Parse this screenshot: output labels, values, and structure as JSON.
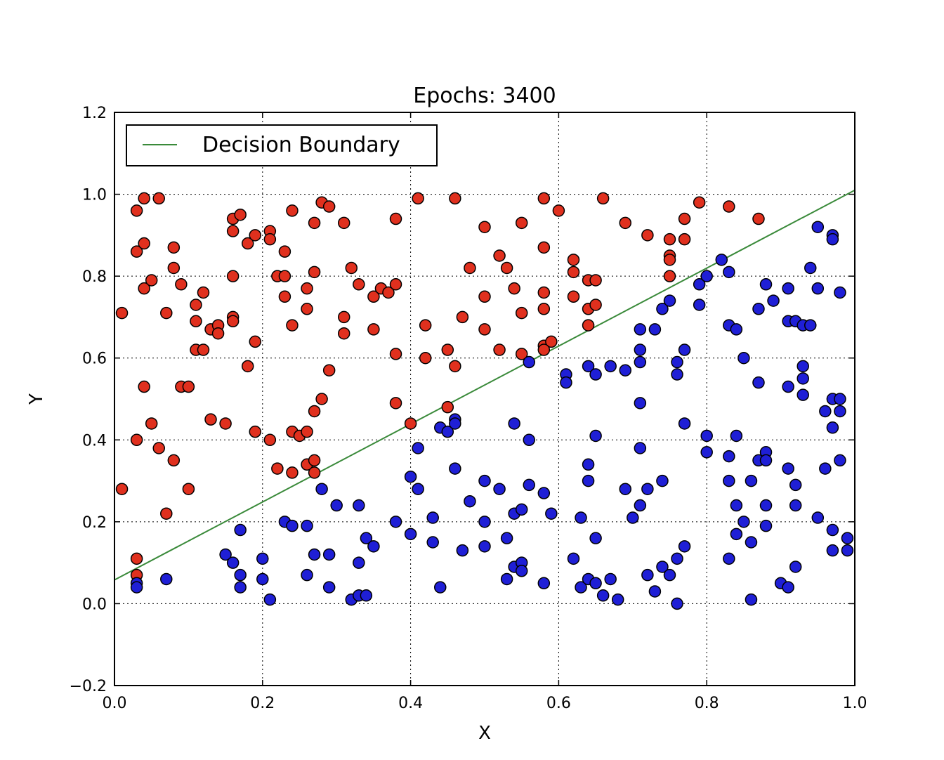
{
  "chart_data": {
    "type": "scatter",
    "title": "Epochs: 3400",
    "xlabel": "X",
    "ylabel": "Y",
    "xlim": [
      0.0,
      1.0
    ],
    "ylim": [
      -0.2,
      1.2
    ],
    "xticks": [
      "0.0",
      "0.2",
      "0.4",
      "0.6",
      "0.8",
      "1.0"
    ],
    "yticks": [
      "−0.2",
      "0.0",
      "0.2",
      "0.4",
      "0.6",
      "0.8",
      "1.0",
      "1.2"
    ],
    "grid": true,
    "legend": {
      "position": "top-left",
      "entries": [
        "Decision Boundary"
      ]
    },
    "colors": {
      "red": "#e0301e",
      "blue": "#1f1fd6",
      "boundary": "#3a8a3a"
    },
    "boundary": {
      "x": [
        0.0,
        1.0
      ],
      "y": [
        0.058,
        1.01
      ]
    },
    "series": [
      {
        "color_key": "red",
        "points": [
          [
            0.01,
            0.71
          ],
          [
            0.03,
            0.96
          ],
          [
            0.04,
            0.99
          ],
          [
            0.06,
            0.99
          ],
          [
            0.03,
            0.86
          ],
          [
            0.04,
            0.88
          ],
          [
            0.08,
            0.87
          ],
          [
            0.04,
            0.77
          ],
          [
            0.05,
            0.79
          ],
          [
            0.08,
            0.82
          ],
          [
            0.09,
            0.78
          ],
          [
            0.07,
            0.71
          ],
          [
            0.11,
            0.73
          ],
          [
            0.12,
            0.76
          ],
          [
            0.11,
            0.69
          ],
          [
            0.11,
            0.62
          ],
          [
            0.12,
            0.62
          ],
          [
            0.13,
            0.67
          ],
          [
            0.14,
            0.68
          ],
          [
            0.14,
            0.66
          ],
          [
            0.04,
            0.53
          ],
          [
            0.09,
            0.53
          ],
          [
            0.1,
            0.53
          ],
          [
            0.05,
            0.44
          ],
          [
            0.06,
            0.38
          ],
          [
            0.03,
            0.4
          ],
          [
            0.08,
            0.35
          ],
          [
            0.07,
            0.22
          ],
          [
            0.01,
            0.28
          ],
          [
            0.1,
            0.28
          ],
          [
            0.03,
            0.11
          ],
          [
            0.03,
            0.07
          ],
          [
            0.13,
            0.45
          ],
          [
            0.15,
            0.44
          ],
          [
            0.16,
            0.94
          ],
          [
            0.17,
            0.95
          ],
          [
            0.16,
            0.91
          ],
          [
            0.18,
            0.88
          ],
          [
            0.19,
            0.9
          ],
          [
            0.21,
            0.91
          ],
          [
            0.21,
            0.89
          ],
          [
            0.24,
            0.96
          ],
          [
            0.23,
            0.86
          ],
          [
            0.16,
            0.8
          ],
          [
            0.22,
            0.8
          ],
          [
            0.23,
            0.8
          ],
          [
            0.23,
            0.75
          ],
          [
            0.16,
            0.7
          ],
          [
            0.16,
            0.69
          ],
          [
            0.24,
            0.68
          ],
          [
            0.19,
            0.64
          ],
          [
            0.18,
            0.58
          ],
          [
            0.19,
            0.42
          ],
          [
            0.21,
            0.4
          ],
          [
            0.24,
            0.42
          ],
          [
            0.25,
            0.41
          ],
          [
            0.26,
            0.42
          ],
          [
            0.22,
            0.33
          ],
          [
            0.24,
            0.32
          ],
          [
            0.26,
            0.34
          ],
          [
            0.27,
            0.32
          ],
          [
            0.27,
            0.35
          ],
          [
            0.27,
            0.47
          ],
          [
            0.28,
            0.5
          ],
          [
            0.29,
            0.57
          ],
          [
            0.28,
            0.98
          ],
          [
            0.29,
            0.97
          ],
          [
            0.27,
            0.93
          ],
          [
            0.31,
            0.93
          ],
          [
            0.27,
            0.81
          ],
          [
            0.26,
            0.77
          ],
          [
            0.26,
            0.72
          ],
          [
            0.31,
            0.7
          ],
          [
            0.31,
            0.66
          ],
          [
            0.32,
            0.82
          ],
          [
            0.33,
            0.78
          ],
          [
            0.35,
            0.75
          ],
          [
            0.36,
            0.77
          ],
          [
            0.37,
            0.76
          ],
          [
            0.38,
            0.78
          ],
          [
            0.38,
            0.94
          ],
          [
            0.35,
            0.67
          ],
          [
            0.38,
            0.61
          ],
          [
            0.38,
            0.49
          ],
          [
            0.4,
            0.44
          ],
          [
            0.41,
            0.99
          ],
          [
            0.46,
            0.99
          ],
          [
            0.42,
            0.68
          ],
          [
            0.42,
            0.6
          ],
          [
            0.45,
            0.62
          ],
          [
            0.46,
            0.58
          ],
          [
            0.47,
            0.7
          ],
          [
            0.48,
            0.82
          ],
          [
            0.5,
            0.92
          ],
          [
            0.5,
            0.75
          ],
          [
            0.5,
            0.67
          ],
          [
            0.45,
            0.48
          ],
          [
            0.52,
            0.85
          ],
          [
            0.53,
            0.82
          ],
          [
            0.55,
            0.93
          ],
          [
            0.54,
            0.77
          ],
          [
            0.55,
            0.71
          ],
          [
            0.52,
            0.62
          ],
          [
            0.55,
            0.61
          ],
          [
            0.58,
            0.99
          ],
          [
            0.6,
            0.96
          ],
          [
            0.58,
            0.87
          ],
          [
            0.58,
            0.76
          ],
          [
            0.58,
            0.72
          ],
          [
            0.58,
            0.63
          ],
          [
            0.59,
            0.64
          ],
          [
            0.58,
            0.62
          ],
          [
            0.62,
            0.84
          ],
          [
            0.62,
            0.81
          ],
          [
            0.64,
            0.79
          ],
          [
            0.65,
            0.79
          ],
          [
            0.62,
            0.75
          ],
          [
            0.64,
            0.72
          ],
          [
            0.65,
            0.73
          ],
          [
            0.64,
            0.68
          ],
          [
            0.66,
            0.99
          ],
          [
            0.69,
            0.93
          ],
          [
            0.72,
            0.9
          ],
          [
            0.75,
            0.89
          ],
          [
            0.77,
            0.89
          ],
          [
            0.75,
            0.85
          ],
          [
            0.75,
            0.84
          ],
          [
            0.75,
            0.8
          ],
          [
            0.77,
            0.94
          ],
          [
            0.79,
            0.98
          ],
          [
            0.83,
            0.97
          ],
          [
            0.87,
            0.94
          ]
        ]
      },
      {
        "color_key": "blue",
        "points": [
          [
            0.03,
            0.05
          ],
          [
            0.03,
            0.04
          ],
          [
            0.07,
            0.06
          ],
          [
            0.15,
            0.12
          ],
          [
            0.16,
            0.1
          ],
          [
            0.17,
            0.07
          ],
          [
            0.17,
            0.04
          ],
          [
            0.17,
            0.18
          ],
          [
            0.2,
            0.11
          ],
          [
            0.2,
            0.06
          ],
          [
            0.21,
            0.01
          ],
          [
            0.23,
            0.2
          ],
          [
            0.24,
            0.19
          ],
          [
            0.26,
            0.19
          ],
          [
            0.26,
            0.07
          ],
          [
            0.27,
            0.12
          ],
          [
            0.29,
            0.12
          ],
          [
            0.29,
            0.04
          ],
          [
            0.28,
            0.28
          ],
          [
            0.3,
            0.24
          ],
          [
            0.32,
            0.01
          ],
          [
            0.33,
            0.02
          ],
          [
            0.33,
            0.1
          ],
          [
            0.33,
            0.24
          ],
          [
            0.34,
            0.16
          ],
          [
            0.35,
            0.14
          ],
          [
            0.34,
            0.02
          ],
          [
            0.38,
            0.2
          ],
          [
            0.4,
            0.17
          ],
          [
            0.4,
            0.31
          ],
          [
            0.41,
            0.28
          ],
          [
            0.41,
            0.38
          ],
          [
            0.43,
            0.21
          ],
          [
            0.43,
            0.15
          ],
          [
            0.44,
            0.04
          ],
          [
            0.44,
            0.43
          ],
          [
            0.45,
            0.42
          ],
          [
            0.46,
            0.45
          ],
          [
            0.46,
            0.44
          ],
          [
            0.46,
            0.33
          ],
          [
            0.47,
            0.13
          ],
          [
            0.48,
            0.25
          ],
          [
            0.5,
            0.3
          ],
          [
            0.5,
            0.2
          ],
          [
            0.5,
            0.14
          ],
          [
            0.52,
            0.28
          ],
          [
            0.53,
            0.16
          ],
          [
            0.53,
            0.06
          ],
          [
            0.54,
            0.09
          ],
          [
            0.55,
            0.1
          ],
          [
            0.55,
            0.08
          ],
          [
            0.54,
            0.22
          ],
          [
            0.55,
            0.23
          ],
          [
            0.54,
            0.44
          ],
          [
            0.56,
            0.4
          ],
          [
            0.56,
            0.29
          ],
          [
            0.56,
            0.59
          ],
          [
            0.58,
            0.27
          ],
          [
            0.58,
            0.05
          ],
          [
            0.59,
            0.22
          ],
          [
            0.61,
            0.56
          ],
          [
            0.61,
            0.54
          ],
          [
            0.62,
            0.11
          ],
          [
            0.63,
            0.04
          ],
          [
            0.64,
            0.06
          ],
          [
            0.65,
            0.05
          ],
          [
            0.63,
            0.21
          ],
          [
            0.64,
            0.3
          ],
          [
            0.64,
            0.34
          ],
          [
            0.65,
            0.41
          ],
          [
            0.65,
            0.16
          ],
          [
            0.66,
            0.02
          ],
          [
            0.67,
            0.06
          ],
          [
            0.64,
            0.58
          ],
          [
            0.65,
            0.56
          ],
          [
            0.67,
            0.58
          ],
          [
            0.69,
            0.57
          ],
          [
            0.69,
            0.28
          ],
          [
            0.68,
            0.01
          ],
          [
            0.7,
            0.21
          ],
          [
            0.71,
            0.24
          ],
          [
            0.71,
            0.38
          ],
          [
            0.71,
            0.59
          ],
          [
            0.71,
            0.62
          ],
          [
            0.71,
            0.67
          ],
          [
            0.71,
            0.49
          ],
          [
            0.72,
            0.28
          ],
          [
            0.72,
            0.07
          ],
          [
            0.73,
            0.03
          ],
          [
            0.73,
            0.67
          ],
          [
            0.74,
            0.72
          ],
          [
            0.75,
            0.74
          ],
          [
            0.74,
            0.3
          ],
          [
            0.74,
            0.09
          ],
          [
            0.75,
            0.07
          ],
          [
            0.76,
            0.11
          ],
          [
            0.76,
            0.0
          ],
          [
            0.77,
            0.14
          ],
          [
            0.76,
            0.56
          ],
          [
            0.76,
            0.59
          ],
          [
            0.77,
            0.62
          ],
          [
            0.77,
            0.44
          ],
          [
            0.79,
            0.78
          ],
          [
            0.79,
            0.73
          ],
          [
            0.8,
            0.8
          ],
          [
            0.8,
            0.37
          ],
          [
            0.8,
            0.41
          ],
          [
            0.82,
            0.84
          ],
          [
            0.83,
            0.81
          ],
          [
            0.83,
            0.68
          ],
          [
            0.84,
            0.67
          ],
          [
            0.83,
            0.36
          ],
          [
            0.84,
            0.41
          ],
          [
            0.83,
            0.3
          ],
          [
            0.83,
            0.11
          ],
          [
            0.84,
            0.17
          ],
          [
            0.84,
            0.24
          ],
          [
            0.85,
            0.2
          ],
          [
            0.85,
            0.6
          ],
          [
            0.86,
            0.3
          ],
          [
            0.86,
            0.15
          ],
          [
            0.86,
            0.01
          ],
          [
            0.87,
            0.35
          ],
          [
            0.87,
            0.72
          ],
          [
            0.87,
            0.54
          ],
          [
            0.88,
            0.37
          ],
          [
            0.88,
            0.35
          ],
          [
            0.88,
            0.24
          ],
          [
            0.88,
            0.19
          ],
          [
            0.88,
            0.78
          ],
          [
            0.89,
            0.74
          ],
          [
            0.9,
            0.05
          ],
          [
            0.91,
            0.04
          ],
          [
            0.91,
            0.77
          ],
          [
            0.91,
            0.69
          ],
          [
            0.91,
            0.53
          ],
          [
            0.91,
            0.33
          ],
          [
            0.92,
            0.24
          ],
          [
            0.92,
            0.29
          ],
          [
            0.92,
            0.09
          ],
          [
            0.92,
            0.69
          ],
          [
            0.93,
            0.68
          ],
          [
            0.93,
            0.58
          ],
          [
            0.93,
            0.55
          ],
          [
            0.93,
            0.51
          ],
          [
            0.94,
            0.68
          ],
          [
            0.94,
            0.82
          ],
          [
            0.95,
            0.92
          ],
          [
            0.95,
            0.77
          ],
          [
            0.95,
            0.21
          ],
          [
            0.97,
            0.9
          ],
          [
            0.97,
            0.89
          ],
          [
            0.97,
            0.5
          ],
          [
            0.96,
            0.47
          ],
          [
            0.96,
            0.33
          ],
          [
            0.97,
            0.43
          ],
          [
            0.97,
            0.18
          ],
          [
            0.97,
            0.13
          ],
          [
            0.98,
            0.76
          ],
          [
            0.98,
            0.5
          ],
          [
            0.98,
            0.47
          ],
          [
            0.98,
            0.35
          ],
          [
            0.99,
            0.16
          ],
          [
            0.99,
            0.13
          ]
        ]
      }
    ]
  }
}
